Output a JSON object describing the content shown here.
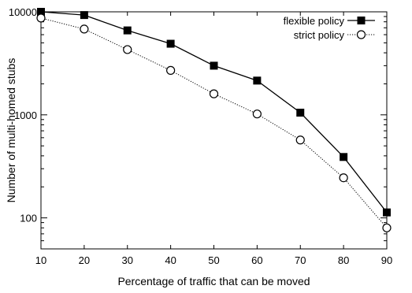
{
  "chart_data": {
    "type": "line",
    "title": "",
    "xlabel": "Percentage of traffic that can be moved",
    "ylabel": "Number of multi-homed stubs",
    "x": [
      10,
      20,
      30,
      40,
      50,
      60,
      70,
      80,
      90
    ],
    "xlim": [
      10,
      90
    ],
    "ylim": [
      50,
      10000
    ],
    "yscale": "log",
    "xticks": [
      "10",
      "20",
      "30",
      "40",
      "50",
      "60",
      "70",
      "80",
      "90"
    ],
    "yticks": [
      {
        "value": 100,
        "label": "100"
      },
      {
        "value": 1000,
        "label": "1000"
      },
      {
        "value": 10000,
        "label": "10000"
      }
    ],
    "grid": false,
    "legend_position": "top-right",
    "series": [
      {
        "name": "flexible policy",
        "values": [
          10000,
          9300,
          6600,
          4900,
          3000,
          2150,
          1050,
          390,
          113
        ],
        "marker": "filled-square",
        "line": "solid",
        "color": "#000000"
      },
      {
        "name": "strict policy",
        "values": [
          8700,
          6800,
          4300,
          2700,
          1600,
          1020,
          570,
          245,
          80
        ],
        "marker": "open-circle",
        "line": "dotted",
        "color": "#000000"
      }
    ]
  }
}
